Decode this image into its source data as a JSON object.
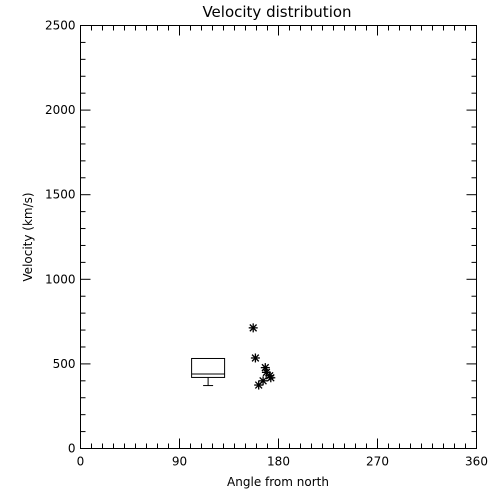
{
  "chart_data": {
    "type": "scatter",
    "title": "Velocity distribution",
    "xlabel": "Angle from north",
    "ylabel": "Velocity (km/s)",
    "xlim": [
      0,
      360
    ],
    "ylim": [
      0,
      2500
    ],
    "x_ticks": [
      0,
      90,
      180,
      270,
      360
    ],
    "y_ticks": [
      0,
      500,
      1000,
      1500,
      2000,
      2500
    ],
    "x_minor_step": 10,
    "y_minor_step": 100,
    "grid": false,
    "marker": "asterisk",
    "points": [
      {
        "x": 157,
        "y": 713
      },
      {
        "x": 159,
        "y": 535
      },
      {
        "x": 168,
        "y": 478
      },
      {
        "x": 169,
        "y": 450
      },
      {
        "x": 172,
        "y": 430
      },
      {
        "x": 173,
        "y": 418
      },
      {
        "x": 166,
        "y": 400
      },
      {
        "x": 162,
        "y": 375
      }
    ],
    "box": {
      "x_min": 101,
      "x_max": 131,
      "q1": 420,
      "median": 440,
      "q3": 532,
      "whisker_low": 372
    }
  }
}
